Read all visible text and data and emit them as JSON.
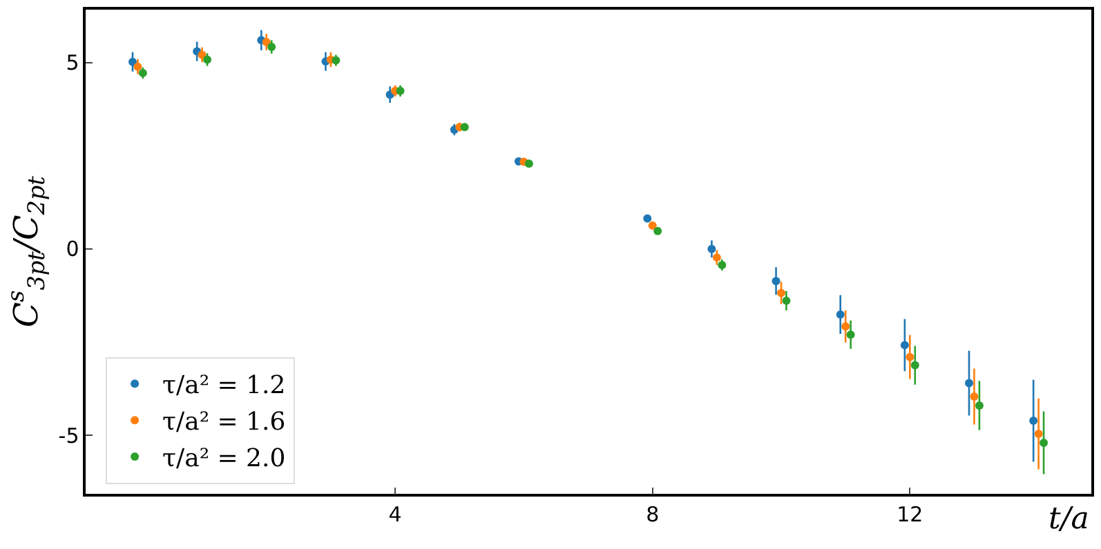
{
  "chart_data": {
    "type": "scatter",
    "xlabel": "t/a",
    "ylabel": "C$^{s}$$_{3pt}$/C$_{2pt}$",
    "xlim": [
      -0.81,
      14.82
    ],
    "ylim": [
      -6.57,
      6.42
    ],
    "xticks": [
      4,
      8,
      12
    ],
    "yticks": [
      {
        "value": -5,
        "label": "-5"
      },
      0,
      5
    ],
    "legend": "bottom left",
    "marker": "circle",
    "series": [
      {
        "name": "τ/a² = 1.2",
        "color": "#1f77b4",
        "x": [
          -0.08,
          0.92,
          1.92,
          2.92,
          3.92,
          4.92,
          5.92,
          7.92,
          8.92,
          9.92,
          10.92,
          11.92,
          12.92,
          13.92
        ],
        "values": [
          5.02,
          5.3,
          5.6,
          5.03,
          4.14,
          3.2,
          2.35,
          0.82,
          0.0,
          -0.86,
          -1.76,
          -2.58,
          -3.6,
          -4.61
        ],
        "errors": [
          0.26,
          0.26,
          0.27,
          0.25,
          0.22,
          0.15,
          0.07,
          0.1,
          0.23,
          0.37,
          0.52,
          0.7,
          0.87,
          1.1
        ]
      },
      {
        "name": "τ/a² = 1.6",
        "color": "#ff7f0e",
        "x": [
          0,
          1,
          2,
          3,
          4,
          5,
          6,
          8,
          9,
          10,
          11,
          12,
          13,
          14
        ],
        "values": [
          4.89,
          5.21,
          5.55,
          5.08,
          4.24,
          3.27,
          2.34,
          0.63,
          -0.23,
          -1.18,
          -2.08,
          -2.9,
          -3.96,
          -4.96
        ],
        "errors": [
          0.2,
          0.2,
          0.22,
          0.2,
          0.15,
          0.12,
          0.07,
          0.1,
          0.2,
          0.3,
          0.43,
          0.59,
          0.75,
          0.95
        ]
      },
      {
        "name": "τ/a² = 2.0",
        "color": "#2ca02c",
        "x": [
          0.08,
          1.08,
          2.08,
          3.08,
          4.08,
          5.08,
          6.08,
          8.08,
          9.08,
          10.08,
          11.08,
          12.08,
          13.08,
          14.08
        ],
        "values": [
          4.72,
          5.08,
          5.42,
          5.06,
          4.24,
          3.27,
          2.29,
          0.48,
          -0.43,
          -1.39,
          -2.3,
          -3.12,
          -4.2,
          -5.2
        ],
        "errors": [
          0.15,
          0.17,
          0.18,
          0.15,
          0.15,
          0.1,
          0.07,
          0.06,
          0.15,
          0.26,
          0.38,
          0.52,
          0.66,
          0.84
        ]
      }
    ]
  }
}
